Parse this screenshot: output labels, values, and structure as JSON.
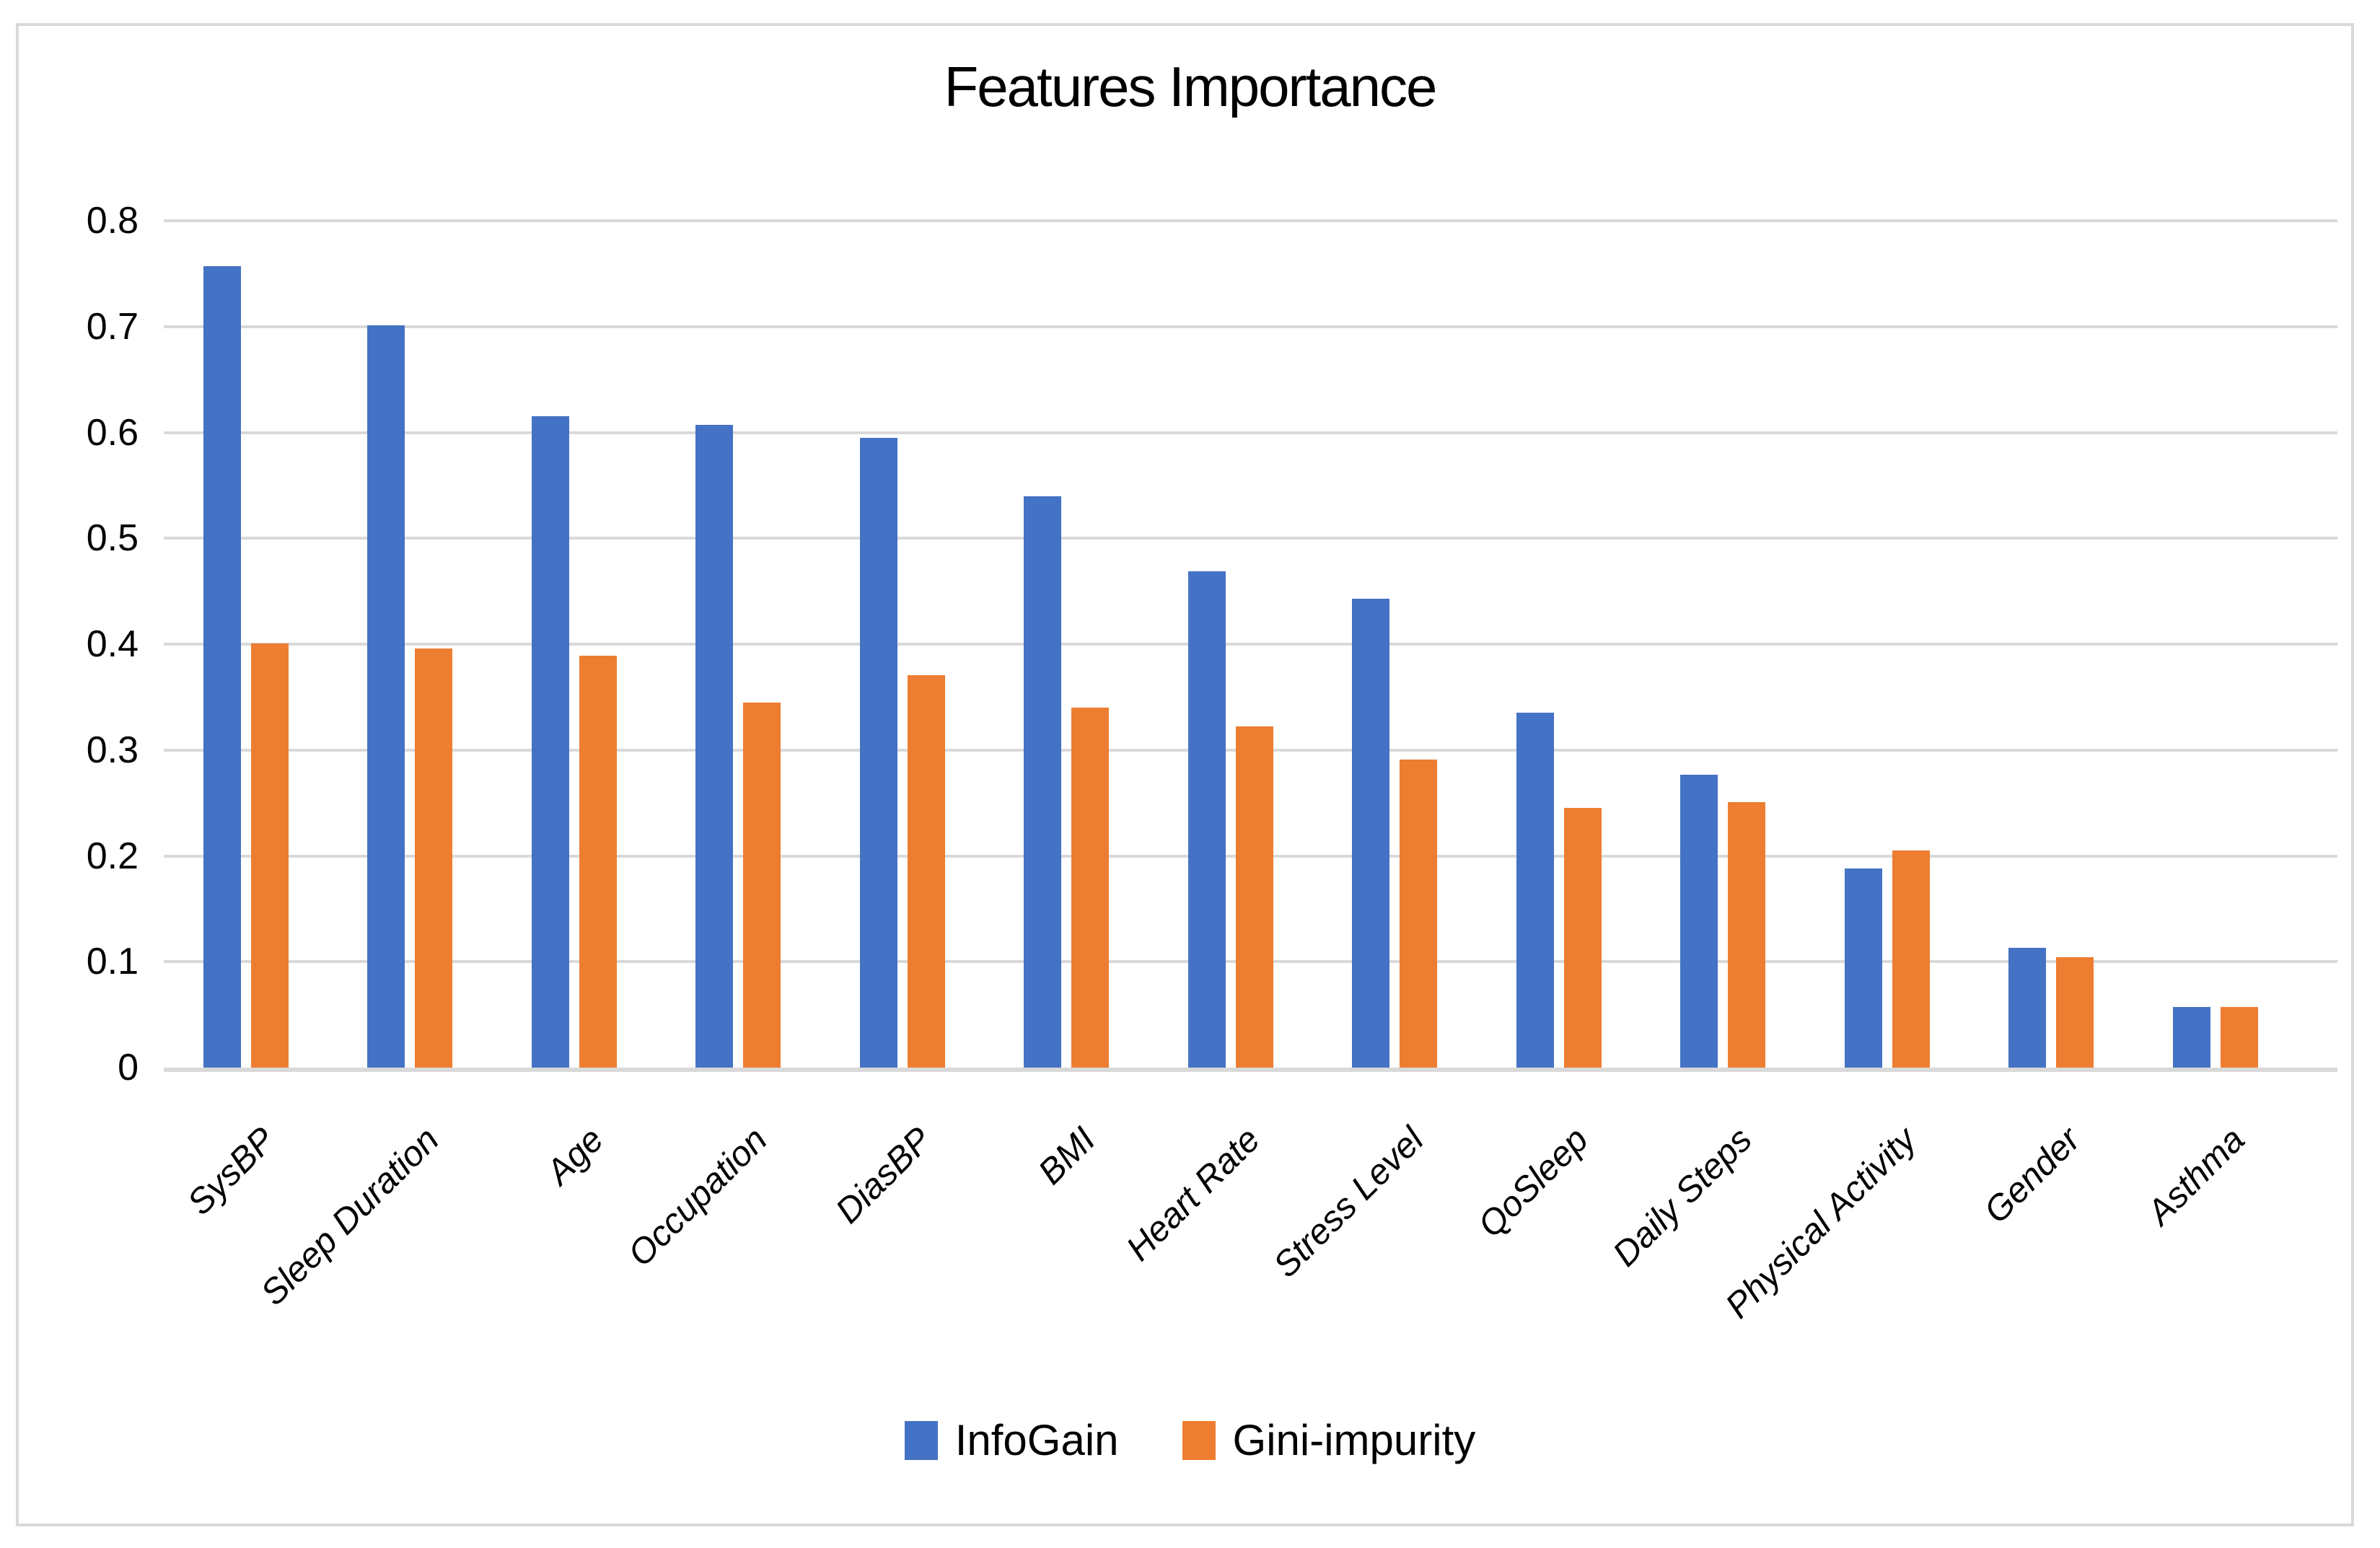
{
  "chart_data": {
    "type": "bar",
    "title": "Features Importance",
    "categories": [
      "SysBP",
      "Sleep Duration",
      "Age",
      "Occupation",
      "DiasBP",
      "BMI",
      "Heart Rate",
      "Stress Level",
      "QoSleep",
      "Daily Steps",
      "Physical Activity",
      "Gender",
      "Asthma"
    ],
    "series": [
      {
        "name": "InfoGain",
        "color": "#4472C4",
        "values": [
          0.757,
          0.701,
          0.615,
          0.607,
          0.595,
          0.54,
          0.469,
          0.443,
          0.335,
          0.277,
          0.188,
          0.113,
          0.057
        ]
      },
      {
        "name": "Gini-impurity",
        "color": "#ED7D31",
        "values": [
          0.401,
          0.396,
          0.389,
          0.345,
          0.371,
          0.34,
          0.322,
          0.291,
          0.245,
          0.251,
          0.205,
          0.104,
          0.057
        ]
      }
    ],
    "xlabel": "",
    "ylabel": "",
    "ylim": [
      0,
      0.8
    ],
    "yticks": [
      "0",
      "0.1",
      "0.2",
      "0.3",
      "0.4",
      "0.5",
      "0.6",
      "0.7",
      "0.8"
    ],
    "grid": true,
    "gridline_color": "#D9D9D9",
    "legend_position": "bottom"
  }
}
